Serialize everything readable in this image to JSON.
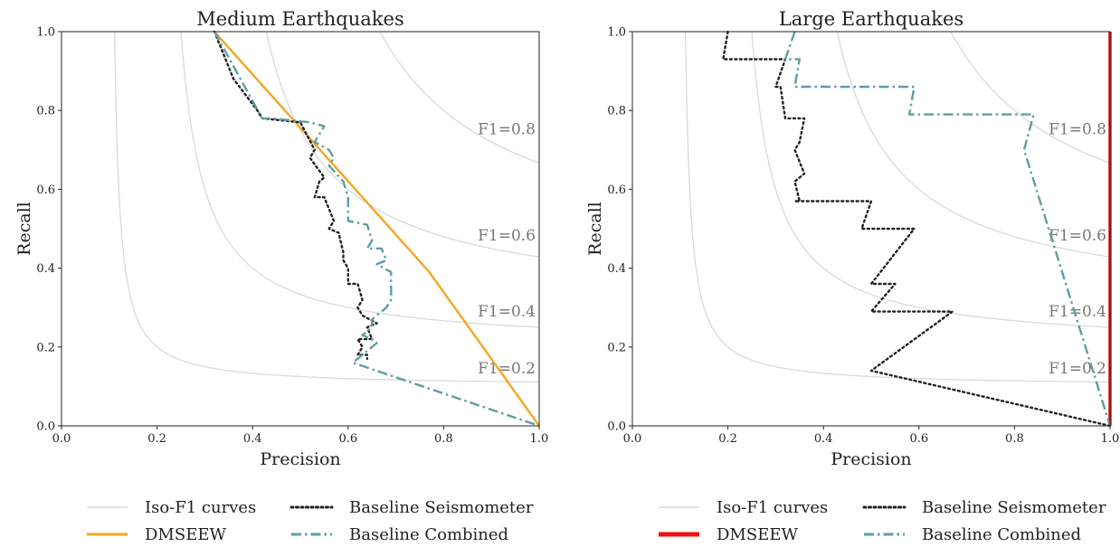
{
  "chart_data": [
    {
      "type": "line",
      "title": "Medium Earthquakes",
      "xlabel": "Precision",
      "ylabel": "Recall",
      "xlim": [
        0,
        1
      ],
      "ylim": [
        0,
        1
      ],
      "xticks": [
        "0.0",
        "0.2",
        "0.4",
        "0.6",
        "0.8",
        "1.0"
      ],
      "yticks": [
        "0.0",
        "0.2",
        "0.4",
        "0.6",
        "0.8",
        "1.0"
      ],
      "grid": false,
      "iso_f1": {
        "values": [
          0.2,
          0.4,
          0.6,
          0.8
        ],
        "labels": [
          "F1=0.2",
          "F1=0.4",
          "F1=0.6",
          "F1=0.8"
        ],
        "color": "#d9d9d9"
      },
      "series": [
        {
          "name": "DMSEEW",
          "color": "#f5a623",
          "style": "solid",
          "x": [
            0.32,
            0.77,
            1.0
          ],
          "y": [
            1.0,
            0.39,
            0.0
          ]
        },
        {
          "name": "Baseline Seismometer",
          "color": "#222222",
          "style": "dotted",
          "x": [
            0.32,
            0.36,
            0.41,
            0.42,
            0.5,
            0.53,
            0.52,
            0.55,
            0.54,
            0.53,
            0.55,
            0.57,
            0.56,
            0.58,
            0.59,
            0.59,
            0.6,
            0.6,
            0.62,
            0.63,
            0.62,
            0.63,
            0.66,
            0.64,
            0.65,
            0.62,
            0.63,
            0.62,
            0.64,
            0.64
          ],
          "y": [
            1.0,
            0.88,
            0.8,
            0.78,
            0.77,
            0.7,
            0.68,
            0.63,
            0.62,
            0.58,
            0.58,
            0.52,
            0.5,
            0.49,
            0.44,
            0.42,
            0.4,
            0.36,
            0.36,
            0.32,
            0.3,
            0.28,
            0.26,
            0.25,
            0.22,
            0.22,
            0.2,
            0.18,
            0.18,
            0.17
          ]
        },
        {
          "name": "Baseline Combined",
          "color": "#5f9ea0",
          "style": "dashdot",
          "x": [
            0.32,
            0.42,
            0.44,
            0.52,
            0.55,
            0.53,
            0.56,
            0.57,
            0.56,
            0.59,
            0.6,
            0.6,
            0.64,
            0.65,
            0.64,
            0.67,
            0.68,
            0.66,
            0.69,
            0.69,
            0.68,
            0.67,
            0.65,
            0.65,
            0.63,
            0.65,
            0.66,
            0.61,
            1.0
          ],
          "y": [
            1.0,
            0.78,
            0.78,
            0.77,
            0.76,
            0.72,
            0.7,
            0.68,
            0.66,
            0.62,
            0.58,
            0.52,
            0.51,
            0.47,
            0.45,
            0.45,
            0.42,
            0.41,
            0.39,
            0.32,
            0.3,
            0.29,
            0.27,
            0.25,
            0.23,
            0.22,
            0.21,
            0.16,
            0.0
          ]
        }
      ]
    },
    {
      "type": "line",
      "title": "Large Earthquakes",
      "xlabel": "Precision",
      "ylabel": "Recall",
      "xlim": [
        0,
        1
      ],
      "ylim": [
        0,
        1
      ],
      "xticks": [
        "0.0",
        "0.2",
        "0.4",
        "0.6",
        "0.8",
        "1.0"
      ],
      "yticks": [
        "0.0",
        "0.2",
        "0.4",
        "0.6",
        "0.8",
        "1.0"
      ],
      "grid": false,
      "iso_f1": {
        "values": [
          0.2,
          0.4,
          0.6,
          0.8
        ],
        "labels": [
          "F1=0.2",
          "F1=0.4",
          "F1=0.6",
          "F1=0.8"
        ],
        "color": "#d9d9d9"
      },
      "series": [
        {
          "name": "DMSEEW",
          "color": "#ee1111",
          "style": "solid",
          "x": [
            1.0,
            1.0
          ],
          "y": [
            0.0,
            1.0
          ]
        },
        {
          "name": "Baseline Seismometer",
          "color": "#222222",
          "style": "dotted",
          "x": [
            0.2,
            0.19,
            0.32,
            0.3,
            0.31,
            0.32,
            0.36,
            0.35,
            0.34,
            0.36,
            0.34,
            0.35,
            0.34,
            0.5,
            0.48,
            0.59,
            0.5,
            0.55,
            0.5,
            0.67,
            0.5,
            1.0
          ],
          "y": [
            1.0,
            0.93,
            0.93,
            0.86,
            0.86,
            0.78,
            0.78,
            0.72,
            0.7,
            0.64,
            0.62,
            0.57,
            0.57,
            0.57,
            0.5,
            0.5,
            0.36,
            0.36,
            0.29,
            0.29,
            0.14,
            0.0
          ]
        },
        {
          "name": "Baseline Combined",
          "color": "#5f9ea0",
          "style": "dashdot",
          "x": [
            0.34,
            0.32,
            0.35,
            0.34,
            0.59,
            0.58,
            0.84,
            0.82,
            1.0
          ],
          "y": [
            1.0,
            0.93,
            0.93,
            0.86,
            0.86,
            0.79,
            0.79,
            0.7,
            0.0
          ]
        }
      ]
    }
  ],
  "legends": [
    {
      "items": [
        {
          "label": "Iso-F1 curves",
          "color": "#d9d9d9",
          "style": "solid",
          "width": 1.5
        },
        {
          "label": "Baseline Seismometer",
          "color": "#222222",
          "style": "dotted",
          "width": 3
        },
        {
          "label": "DMSEEW",
          "color": "#f5a623",
          "style": "solid",
          "width": 3
        },
        {
          "label": "Baseline Combined",
          "color": "#5f9ea0",
          "style": "dashdot",
          "width": 3
        }
      ]
    },
    {
      "items": [
        {
          "label": "Iso-F1 curves",
          "color": "#d9d9d9",
          "style": "solid",
          "width": 1.5
        },
        {
          "label": "Baseline Seismometer",
          "color": "#222222",
          "style": "dotted",
          "width": 3
        },
        {
          "label": "DMSEEW",
          "color": "#ee1111",
          "style": "solid",
          "width": 5
        },
        {
          "label": "Baseline Combined",
          "color": "#5f9ea0",
          "style": "dashdot",
          "width": 3
        }
      ]
    }
  ]
}
